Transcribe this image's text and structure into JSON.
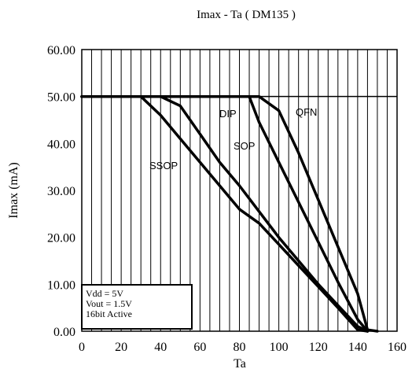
{
  "chart_data": {
    "type": "line",
    "title": "Imax - Ta ( DM135 )",
    "xlabel": "Ta",
    "ylabel": "Imax (mA)",
    "xlim": [
      0,
      160
    ],
    "ylim": [
      0,
      60
    ],
    "x_ticks": [
      "0",
      "20",
      "40",
      "60",
      "80",
      "100",
      "120",
      "140",
      "160"
    ],
    "y_ticks": [
      "0.00",
      "10.00",
      "20.00",
      "30.00",
      "40.00",
      "50.00",
      "60.00"
    ],
    "grid": {
      "vertical_every": 5,
      "horizontal": false
    },
    "series": [
      {
        "name": "SSOP",
        "x": [
          0,
          30,
          40,
          50,
          60,
          70,
          80,
          90,
          100,
          110,
          120,
          130,
          140,
          145
        ],
        "y": [
          50,
          50,
          46,
          41,
          36,
          31,
          26,
          23,
          18.5,
          14,
          9.5,
          5,
          0.3,
          0
        ]
      },
      {
        "name": "SOP",
        "x": [
          0,
          40,
          50,
          60,
          70,
          80,
          90,
          100,
          110,
          120,
          130,
          140,
          145
        ],
        "y": [
          50,
          50,
          48,
          42,
          36,
          31,
          25.5,
          20,
          15,
          10,
          5.5,
          1,
          0
        ]
      },
      {
        "name": "DIP",
        "x": [
          0,
          85,
          90,
          100,
          110,
          120,
          130,
          140,
          145
        ],
        "y": [
          50,
          50,
          44.5,
          36,
          27.5,
          19,
          10.5,
          2.5,
          0
        ]
      },
      {
        "name": "QFN",
        "x": [
          0,
          90,
          100,
          110,
          120,
          130,
          140,
          145,
          150
        ],
        "y": [
          50,
          50,
          47,
          38,
          28,
          18,
          8,
          0.3,
          0
        ]
      }
    ],
    "labels": [
      "DIP",
      "QFN",
      "SOP",
      "SSOP"
    ],
    "legend_box": [
      "Vdd = 5V",
      "Vout = 1.5V",
      "16bit Active"
    ]
  }
}
